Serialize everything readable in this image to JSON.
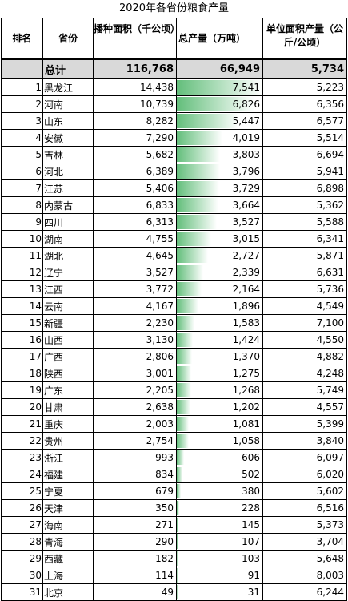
{
  "title": "2020年各省份粮食产量",
  "headers": {
    "rank": "排名",
    "province": "省份",
    "area": "播种面积（千公顷）",
    "output": "总产量（万吨）",
    "yield": "单位面积产量（公斤/公顷）"
  },
  "total": {
    "label": "总计",
    "area": "116,768",
    "output": "66,949",
    "yield": "5,734"
  },
  "bar_max": 7541,
  "colors": {
    "bar_dark": "#63be7b",
    "bar_light": "#ffffff",
    "total_bg": "#d9d9d9"
  },
  "rows": [
    {
      "rank": "1",
      "province": "黑龙江",
      "area": "14,438",
      "output": "7,541",
      "output_value": 7541,
      "yield": "5,223"
    },
    {
      "rank": "2",
      "province": "河南",
      "area": "10,739",
      "output": "6,826",
      "output_value": 6826,
      "yield": "6,356"
    },
    {
      "rank": "3",
      "province": "山东",
      "area": "8,282",
      "output": "5,447",
      "output_value": 5447,
      "yield": "6,577"
    },
    {
      "rank": "4",
      "province": "安徽",
      "area": "7,290",
      "output": "4,019",
      "output_value": 4019,
      "yield": "5,514"
    },
    {
      "rank": "5",
      "province": "吉林",
      "area": "5,682",
      "output": "3,803",
      "output_value": 3803,
      "yield": "6,694"
    },
    {
      "rank": "6",
      "province": "河北",
      "area": "6,389",
      "output": "3,796",
      "output_value": 3796,
      "yield": "5,941"
    },
    {
      "rank": "7",
      "province": "江苏",
      "area": "5,406",
      "output": "3,729",
      "output_value": 3729,
      "yield": "6,898"
    },
    {
      "rank": "8",
      "province": "内蒙古",
      "area": "6,833",
      "output": "3,664",
      "output_value": 3664,
      "yield": "5,362"
    },
    {
      "rank": "9",
      "province": "四川",
      "area": "6,313",
      "output": "3,527",
      "output_value": 3527,
      "yield": "5,588"
    },
    {
      "rank": "10",
      "province": "湖南",
      "area": "4,755",
      "output": "3,015",
      "output_value": 3015,
      "yield": "6,341"
    },
    {
      "rank": "11",
      "province": "湖北",
      "area": "4,645",
      "output": "2,727",
      "output_value": 2727,
      "yield": "5,871"
    },
    {
      "rank": "12",
      "province": "辽宁",
      "area": "3,527",
      "output": "2,339",
      "output_value": 2339,
      "yield": "6,631"
    },
    {
      "rank": "13",
      "province": "江西",
      "area": "3,772",
      "output": "2,164",
      "output_value": 2164,
      "yield": "5,736"
    },
    {
      "rank": "14",
      "province": "云南",
      "area": "4,167",
      "output": "1,896",
      "output_value": 1896,
      "yield": "4,549"
    },
    {
      "rank": "15",
      "province": "新疆",
      "area": "2,230",
      "output": "1,583",
      "output_value": 1583,
      "yield": "7,100"
    },
    {
      "rank": "16",
      "province": "山西",
      "area": "3,130",
      "output": "1,424",
      "output_value": 1424,
      "yield": "4,550"
    },
    {
      "rank": "17",
      "province": "广西",
      "area": "2,806",
      "output": "1,370",
      "output_value": 1370,
      "yield": "4,882"
    },
    {
      "rank": "18",
      "province": "陕西",
      "area": "3,001",
      "output": "1,275",
      "output_value": 1275,
      "yield": "4,248"
    },
    {
      "rank": "19",
      "province": "广东",
      "area": "2,205",
      "output": "1,268",
      "output_value": 1268,
      "yield": "5,749"
    },
    {
      "rank": "20",
      "province": "甘肃",
      "area": "2,638",
      "output": "1,202",
      "output_value": 1202,
      "yield": "4,557"
    },
    {
      "rank": "21",
      "province": "重庆",
      "area": "2,003",
      "output": "1,081",
      "output_value": 1081,
      "yield": "5,399"
    },
    {
      "rank": "22",
      "province": "贵州",
      "area": "2,754",
      "output": "1,058",
      "output_value": 1058,
      "yield": "3,840"
    },
    {
      "rank": "23",
      "province": "浙江",
      "area": "993",
      "output": "606",
      "output_value": 606,
      "yield": "6,097"
    },
    {
      "rank": "24",
      "province": "福建",
      "area": "834",
      "output": "502",
      "output_value": 502,
      "yield": "6,020"
    },
    {
      "rank": "25",
      "province": "宁夏",
      "area": "679",
      "output": "380",
      "output_value": 380,
      "yield": "5,602"
    },
    {
      "rank": "26",
      "province": "天津",
      "area": "350",
      "output": "228",
      "output_value": 228,
      "yield": "6,516"
    },
    {
      "rank": "27",
      "province": "海南",
      "area": "271",
      "output": "145",
      "output_value": 145,
      "yield": "5,373"
    },
    {
      "rank": "28",
      "province": "青海",
      "area": "290",
      "output": "107",
      "output_value": 107,
      "yield": "3,704"
    },
    {
      "rank": "29",
      "province": "西藏",
      "area": "182",
      "output": "103",
      "output_value": 103,
      "yield": "5,648"
    },
    {
      "rank": "30",
      "province": "上海",
      "area": "114",
      "output": "91",
      "output_value": 91,
      "yield": "8,003"
    },
    {
      "rank": "31",
      "province": "北京",
      "area": "49",
      "output": "31",
      "output_value": 31,
      "yield": "6,244"
    }
  ]
}
